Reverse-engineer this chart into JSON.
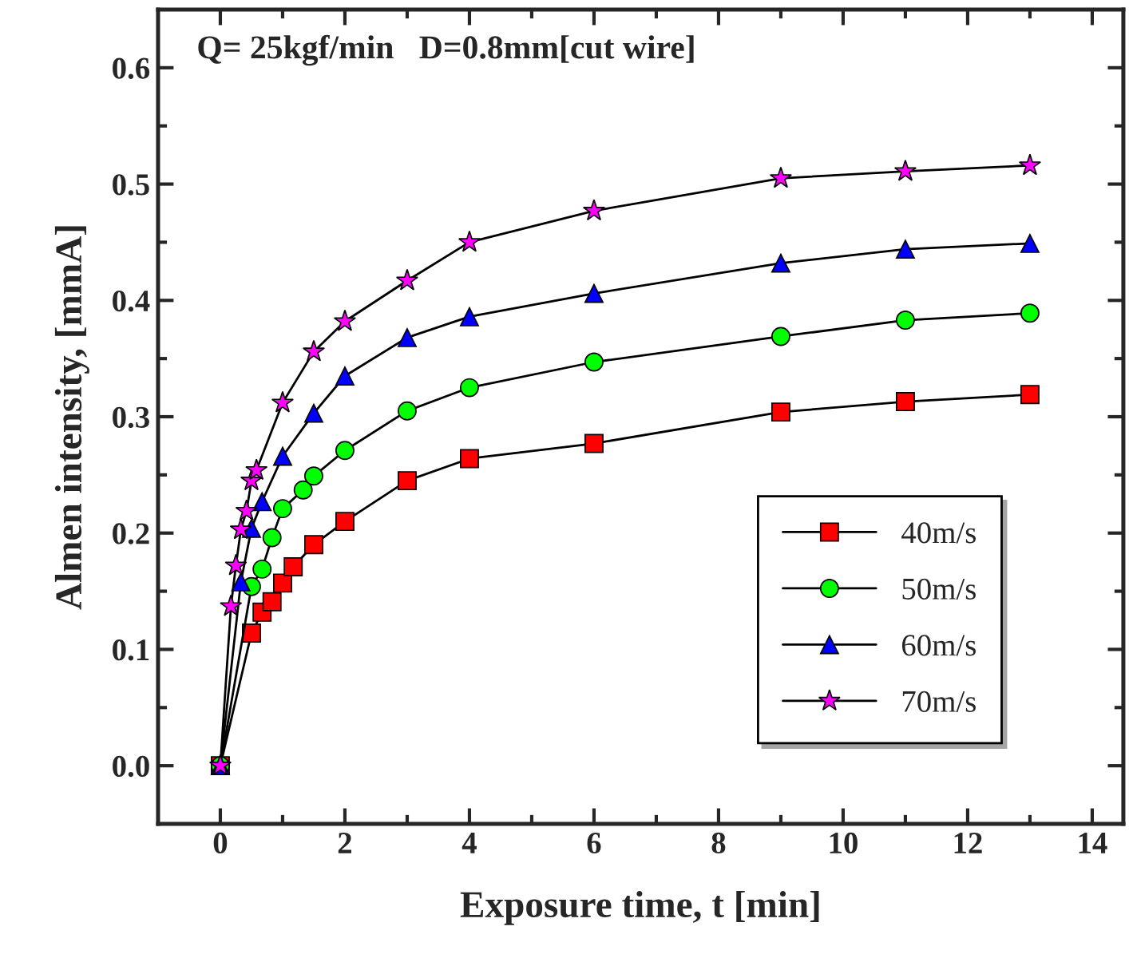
{
  "chart_data": {
    "type": "line",
    "xlabel": "Exposure time, t [min]",
    "ylabel": "Almen intensity, [mmA]",
    "annotations": [
      "Q= 25kgf/min   D=0.8mm[cut wire]"
    ],
    "xlim": [
      -1,
      14.5
    ],
    "xticks": [
      0,
      2,
      4,
      6,
      8,
      10,
      12,
      14
    ],
    "ylim": [
      -0.05,
      0.65
    ],
    "yticks": [
      {
        "value": 0,
        "label": "0.0"
      },
      0.1,
      0.2,
      0.3,
      0.4,
      0.5,
      0.6
    ],
    "grid": false,
    "legend": "lower right",
    "line_style": "solid",
    "series": [
      {
        "name": "40m/s",
        "color": "#ff0000",
        "marker": "square",
        "x": [
          0,
          0.5,
          0.67,
          0.83,
          1,
          1.17,
          1.5,
          2,
          3,
          4,
          6,
          9,
          11,
          13
        ],
        "values": [
          0,
          0.114,
          0.132,
          0.141,
          0.157,
          0.171,
          0.19,
          0.21,
          0.245,
          0.264,
          0.277,
          0.304,
          0.313,
          0.319
        ]
      },
      {
        "name": "50m/s",
        "color": "#00ff00",
        "marker": "circle",
        "x": [
          0,
          0.5,
          0.67,
          0.83,
          1,
          1.33,
          1.5,
          2,
          3,
          4,
          6,
          9,
          11,
          13
        ],
        "values": [
          0,
          0.154,
          0.169,
          0.196,
          0.221,
          0.237,
          0.249,
          0.271,
          0.305,
          0.325,
          0.347,
          0.369,
          0.383,
          0.389
        ]
      },
      {
        "name": "60m/s",
        "color": "#0000ff",
        "marker": "triangle",
        "x": [
          0,
          0.33,
          0.5,
          0.67,
          1,
          1.5,
          2,
          3,
          4,
          6,
          9,
          11,
          13
        ],
        "values": [
          0,
          0.158,
          0.204,
          0.227,
          0.266,
          0.303,
          0.335,
          0.368,
          0.386,
          0.406,
          0.432,
          0.444,
          0.449
        ]
      },
      {
        "name": "70m/s",
        "color": "#ff00ff",
        "marker": "star",
        "x": [
          0,
          0.17,
          0.25,
          0.33,
          0.42,
          0.5,
          0.58,
          1,
          1.5,
          2,
          3,
          4,
          6,
          9,
          11,
          13
        ],
        "values": [
          0,
          0.137,
          0.172,
          0.203,
          0.219,
          0.245,
          0.254,
          0.312,
          0.356,
          0.382,
          0.417,
          0.45,
          0.477,
          0.505,
          0.511,
          0.516
        ]
      }
    ]
  }
}
